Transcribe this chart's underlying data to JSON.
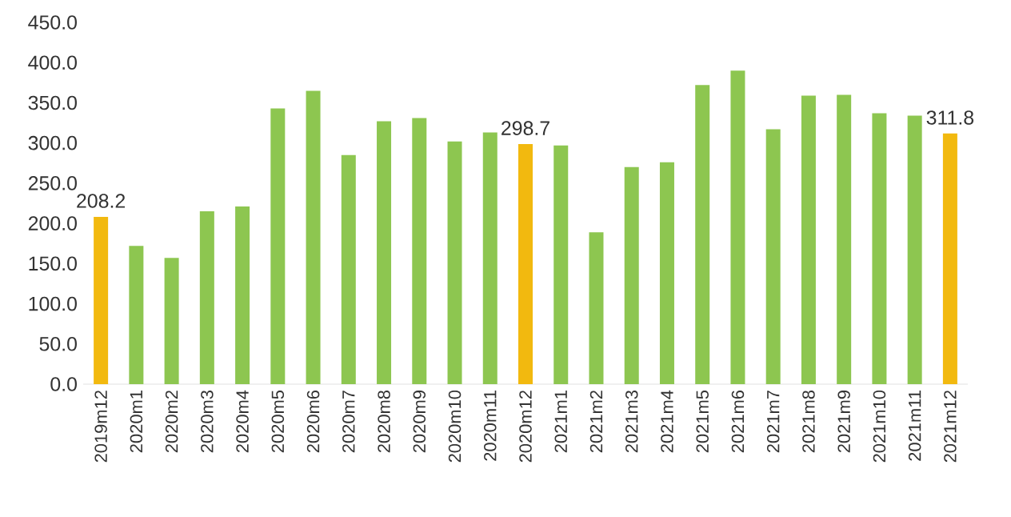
{
  "chart_data": {
    "type": "bar",
    "categories": [
      "2019m12",
      "2020m1",
      "2020m2",
      "2020m3",
      "2020m4",
      "2020m5",
      "2020m6",
      "2020m7",
      "2020m8",
      "2020m9",
      "2020m10",
      "2020m11",
      "2020m12",
      "2021m1",
      "2021m2",
      "2021m3",
      "2021m4",
      "2021m5",
      "2021m6",
      "2021m7",
      "2021m8",
      "2021m9",
      "2021m10",
      "2021m11",
      "2021m12"
    ],
    "values": [
      208.2,
      172,
      157,
      215,
      221,
      343,
      365,
      285,
      327,
      331,
      302,
      313,
      298.7,
      297,
      189,
      270,
      276,
      372,
      390,
      317,
      359,
      360,
      337,
      334,
      311.8
    ],
    "colors": [
      "#f2b90f",
      "#8dc650",
      "#8dc650",
      "#8dc650",
      "#8dc650",
      "#8dc650",
      "#8dc650",
      "#8dc650",
      "#8dc650",
      "#8dc650",
      "#8dc650",
      "#8dc650",
      "#f2b90f",
      "#8dc650",
      "#8dc650",
      "#8dc650",
      "#8dc650",
      "#8dc650",
      "#8dc650",
      "#8dc650",
      "#8dc650",
      "#8dc650",
      "#8dc650",
      "#8dc650",
      "#f2b90f"
    ],
    "value_labels": [
      "208.2",
      null,
      null,
      null,
      null,
      null,
      null,
      null,
      null,
      null,
      null,
      null,
      "298.7",
      null,
      null,
      null,
      null,
      null,
      null,
      null,
      null,
      null,
      null,
      null,
      "311.8"
    ],
    "ylim": [
      0,
      450
    ],
    "yticks": [
      {
        "value": 0,
        "label": "0.0"
      },
      {
        "value": 50,
        "label": "50.0"
      },
      {
        "value": 100,
        "label": "100.0"
      },
      {
        "value": 150,
        "label": "150.0"
      },
      {
        "value": 200,
        "label": "200.0"
      },
      {
        "value": 250,
        "label": "250.0"
      },
      {
        "value": 300,
        "label": "300.0"
      },
      {
        "value": 350,
        "label": "350.0"
      },
      {
        "value": 400,
        "label": "400.0"
      },
      {
        "value": 450,
        "label": "450.0"
      }
    ],
    "grid": false
  }
}
